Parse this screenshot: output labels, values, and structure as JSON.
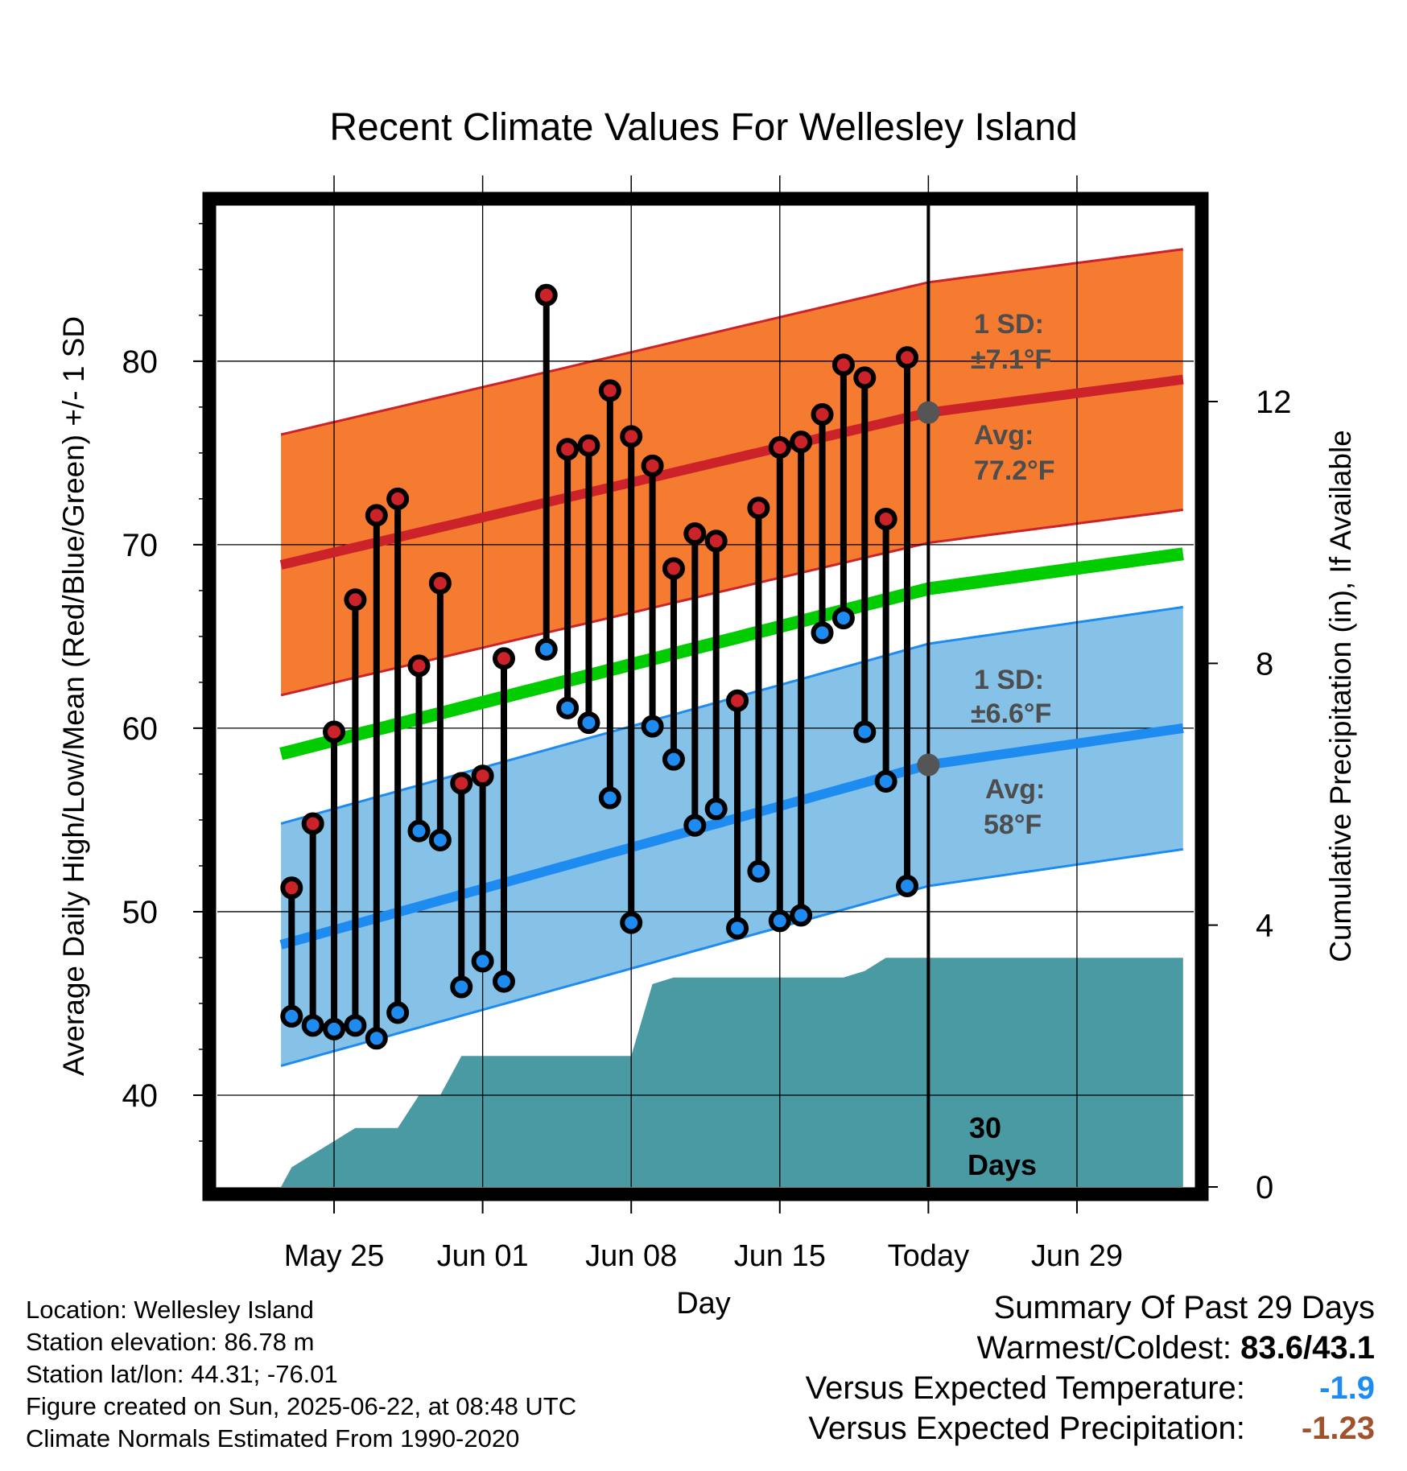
{
  "chart_data": {
    "type": "line",
    "title": "Recent Climate Values For Wellesley Island",
    "xlabel": "Day",
    "ylabel": "Average Daily High/Low/Mean (Red/Blue/Green) +/- 1 SD",
    "y2label": "Cumulative Precipitation (in), If Available",
    "ylim": [
      35,
      88.5
    ],
    "y2lim": [
      0,
      15
    ],
    "xlim": [
      -5.5,
      40.5
    ],
    "x_tick_labels": [
      {
        "day": 0,
        "label": "May 25"
      },
      {
        "day": 7,
        "label": "Jun 01"
      },
      {
        "day": 14,
        "label": "Jun 08"
      },
      {
        "day": 21,
        "label": "Jun 15"
      },
      {
        "day": 28,
        "label": "Today"
      },
      {
        "day": 35,
        "label": "Jun 29"
      }
    ],
    "y_ticks": [
      40,
      50,
      60,
      70,
      80
    ],
    "y2_ticks": [
      0,
      4,
      8,
      12
    ],
    "today_day": 28,
    "observed": [
      {
        "day": -2,
        "high": 51.3,
        "low": 44.3
      },
      {
        "day": -1,
        "high": 54.8,
        "low": 43.8
      },
      {
        "day": 0,
        "high": 59.8,
        "low": 43.6
      },
      {
        "day": 1,
        "high": 67.0,
        "low": 43.8
      },
      {
        "day": 2,
        "high": 71.6,
        "low": 43.1
      },
      {
        "day": 3,
        "high": 72.5,
        "low": 44.5
      },
      {
        "day": 4,
        "high": 63.4,
        "low": 54.4
      },
      {
        "day": 5,
        "high": 67.9,
        "low": 53.9
      },
      {
        "day": 6,
        "high": 57.0,
        "low": 45.9
      },
      {
        "day": 7,
        "high": 57.4,
        "low": 47.3
      },
      {
        "day": 8,
        "high": 63.8,
        "low": 46.2
      },
      {
        "day": 10,
        "high": 83.6,
        "low": 64.3
      },
      {
        "day": 11,
        "high": 75.2,
        "low": 61.1
      },
      {
        "day": 12,
        "high": 75.4,
        "low": 60.3
      },
      {
        "day": 13,
        "high": 78.4,
        "low": 56.2
      },
      {
        "day": 14,
        "high": 75.9,
        "low": 49.4
      },
      {
        "day": 15,
        "high": 74.3,
        "low": 60.1
      },
      {
        "day": 16,
        "high": 68.7,
        "low": 58.3
      },
      {
        "day": 17,
        "high": 70.6,
        "low": 54.7
      },
      {
        "day": 18,
        "high": 70.2,
        "low": 55.6
      },
      {
        "day": 19,
        "high": 61.5,
        "low": 49.1
      },
      {
        "day": 20,
        "high": 72.0,
        "low": 52.2
      },
      {
        "day": 21,
        "high": 75.3,
        "low": 49.5
      },
      {
        "day": 22,
        "high": 75.6,
        "low": 49.8
      },
      {
        "day": 23,
        "high": 77.1,
        "low": 65.2
      },
      {
        "day": 24,
        "high": 79.8,
        "low": 66.0
      },
      {
        "day": 25,
        "high": 79.1,
        "low": 59.8
      },
      {
        "day": 26,
        "high": 71.4,
        "low": 57.1
      },
      {
        "day": 27,
        "high": 80.2,
        "low": 51.4
      }
    ],
    "normals": {
      "days": [
        -2.5,
        28,
        40
      ],
      "high_avg": [
        68.9,
        77.2,
        79.0
      ],
      "low_avg": [
        48.2,
        58.0,
        60.0
      ],
      "mean_avg": [
        58.6,
        67.6,
        69.5
      ],
      "high_sd": 7.1,
      "low_sd": 6.6
    },
    "precip_cumulative": [
      {
        "day": -2.5,
        "value": 0.0
      },
      {
        "day": -2,
        "value": 0.3
      },
      {
        "day": -1,
        "value": 0.5
      },
      {
        "day": 0,
        "value": 0.7
      },
      {
        "day": 1,
        "value": 0.9
      },
      {
        "day": 3,
        "value": 0.9
      },
      {
        "day": 4,
        "value": 1.4
      },
      {
        "day": 5,
        "value": 1.4
      },
      {
        "day": 6,
        "value": 2.0
      },
      {
        "day": 14,
        "value": 2.0
      },
      {
        "day": 15,
        "value": 3.1
      },
      {
        "day": 16,
        "value": 3.2
      },
      {
        "day": 24,
        "value": 3.2
      },
      {
        "day": 25,
        "value": 3.3
      },
      {
        "day": 26,
        "value": 3.5
      },
      {
        "day": 40,
        "value": 3.5
      }
    ],
    "annotations": {
      "high_sd_label": "1 SD:",
      "high_sd_value": "±7.1°F",
      "high_avg_label": "Avg:",
      "high_avg_value": "77.2°F",
      "low_sd_label": "1 SD:",
      "low_sd_value": "±6.6°F",
      "low_avg_label": "Avg:",
      "low_avg_value": "58°F",
      "precip_days_1": "30",
      "precip_days_2": "Days"
    },
    "colors": {
      "high_band": "#f47b2f",
      "high_line": "#cc2229",
      "low_band": "#86c2e8",
      "low_line": "#1e8bf0",
      "mean_line": "#00cc00",
      "precip": "#4a9aa4",
      "high_dot": "#cc2229",
      "low_dot": "#1e8bf0",
      "annotation_text": "#4d4d4d"
    }
  },
  "station_info": {
    "location": "Location: Wellesley Island",
    "elevation": "Station elevation: 86.78 m",
    "latlon": "Station lat/lon: 44.31; -76.01",
    "created": "Figure created on Sun, 2025-06-22, at 08:48 UTC",
    "normals": "Climate Normals Estimated From 1990-2020"
  },
  "summary": {
    "title": "Summary Of Past 29 Days",
    "warmest_coldest_label": "Warmest/Coldest:",
    "warmest_coldest_value": "83.6/43.1",
    "temp_label": "Versus Expected Temperature:",
    "temp_value": "-1.9",
    "temp_color": "#1e8bf0",
    "precip_label": "Versus Expected Precipitation:",
    "precip_value": "-1.23",
    "precip_color": "#a0522d"
  }
}
